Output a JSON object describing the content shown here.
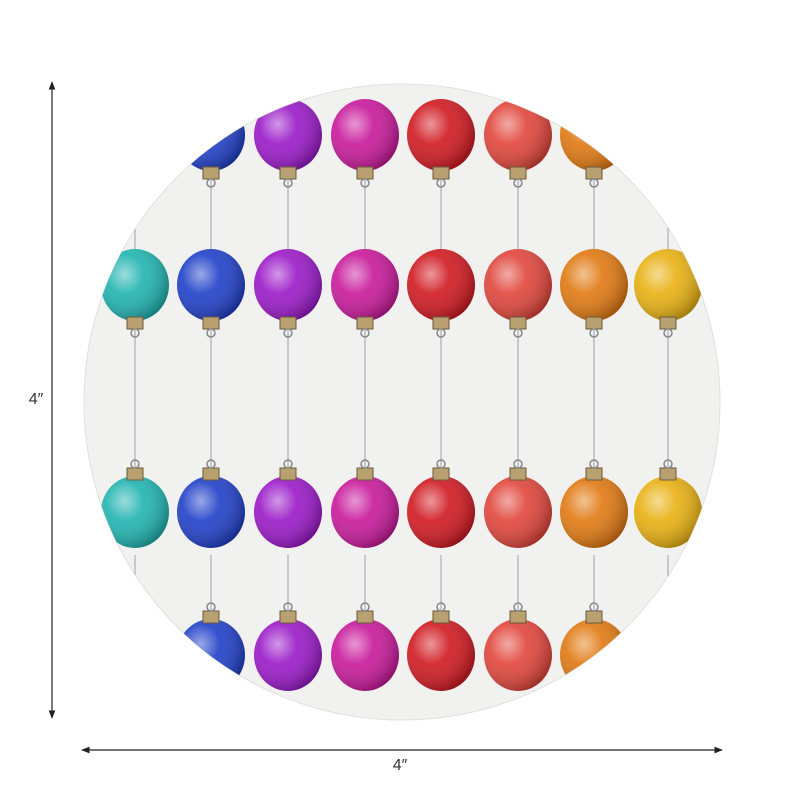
{
  "dimensions": {
    "height": "4″",
    "width": "4″"
  }
}
